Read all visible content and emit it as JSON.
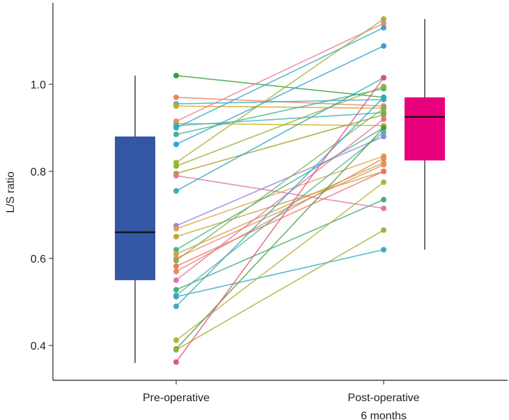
{
  "chart_data": {
    "type": "box-with-paired-points",
    "title": "",
    "xlabel": "",
    "ylabel": "L/S ratio",
    "ylim": [
      0.34,
      1.2
    ],
    "y_ticks": [
      0.4,
      0.6,
      0.8,
      1.0
    ],
    "y_tick_labels": [
      "0.4",
      "0.6",
      "0.8",
      "1.0"
    ],
    "categories": [
      "Pre-operative",
      "Post-operative\n6 months"
    ],
    "category_label_lines": [
      [
        "Pre-operative"
      ],
      [
        "Post-operative",
        "6 months"
      ]
    ],
    "boxes": [
      {
        "category": "Pre-operative",
        "whisker_low": 0.36,
        "q1": 0.55,
        "median": 0.66,
        "q3": 0.88,
        "whisker_high": 1.02,
        "color": "#3357a5"
      },
      {
        "category": "Post-operative\n6 months",
        "whisker_low": 0.62,
        "q1": 0.825,
        "median": 0.925,
        "q3": 0.97,
        "whisker_high": 1.15,
        "color": "#e8007c"
      }
    ],
    "pairs": [
      {
        "pre": 1.02,
        "post": 0.97,
        "color": "#2e9d3a"
      },
      {
        "pre": 0.97,
        "post": 0.95,
        "color": "#f07c5c"
      },
      {
        "pre": 0.955,
        "post": 0.965,
        "color": "#30b0c0"
      },
      {
        "pre": 0.95,
        "post": 0.945,
        "color": "#d4a020"
      },
      {
        "pre": 0.915,
        "post": 1.14,
        "color": "#f07c8c"
      },
      {
        "pre": 0.91,
        "post": 0.905,
        "color": "#c0b020"
      },
      {
        "pre": 0.905,
        "post": 0.935,
        "color": "#38b0b0"
      },
      {
        "pre": 0.9,
        "post": 1.13,
        "color": "#30a8c8"
      },
      {
        "pre": 0.885,
        "post": 0.99,
        "color": "#3cb090"
      },
      {
        "pre": 0.862,
        "post": 1.088,
        "color": "#2ca0d0"
      },
      {
        "pre": 0.82,
        "post": 1.15,
        "color": "#a0b030"
      },
      {
        "pre": 0.812,
        "post": 0.995,
        "color": "#90b030"
      },
      {
        "pre": 0.795,
        "post": 0.93,
        "color": "#a0a020"
      },
      {
        "pre": 0.79,
        "post": 0.715,
        "color": "#e070a8"
      },
      {
        "pre": 0.755,
        "post": 1.015,
        "color": "#30a8b0"
      },
      {
        "pre": 0.675,
        "post": 0.88,
        "color": "#9080e0"
      },
      {
        "pre": 0.668,
        "post": 0.835,
        "color": "#e0a040"
      },
      {
        "pre": 0.65,
        "post": 0.8,
        "color": "#c0a030"
      },
      {
        "pre": 0.62,
        "post": 0.9,
        "color": "#40b088"
      },
      {
        "pre": 0.61,
        "post": 0.82,
        "color": "#c8a040"
      },
      {
        "pre": 0.6,
        "post": 0.815,
        "color": "#f08860"
      },
      {
        "pre": 0.595,
        "post": 0.945,
        "color": "#80b050"
      },
      {
        "pre": 0.582,
        "post": 0.8,
        "color": "#f07060"
      },
      {
        "pre": 0.57,
        "post": 0.83,
        "color": "#e08858"
      },
      {
        "pre": 0.55,
        "post": 0.92,
        "color": "#e070a0"
      },
      {
        "pre": 0.528,
        "post": 0.735,
        "color": "#40a878"
      },
      {
        "pre": 0.515,
        "post": 0.89,
        "color": "#50b0a0"
      },
      {
        "pre": 0.512,
        "post": 0.62,
        "color": "#30a8c8"
      },
      {
        "pre": 0.49,
        "post": 0.97,
        "color": "#30a8c0"
      },
      {
        "pre": 0.412,
        "post": 0.775,
        "color": "#b0b030"
      },
      {
        "pre": 0.392,
        "post": 0.9,
        "color": "#40a040"
      },
      {
        "pre": 0.39,
        "post": 0.665,
        "color": "#a0b030"
      },
      {
        "pre": 0.362,
        "post": 1.015,
        "color": "#e04f80"
      }
    ]
  }
}
